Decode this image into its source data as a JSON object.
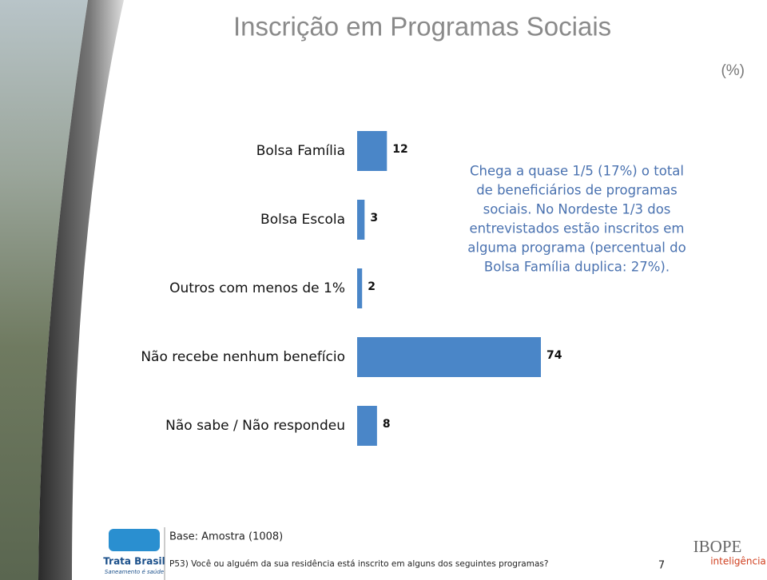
{
  "chart_data": {
    "type": "hbar",
    "title": "Inscrição em Programas Sociais",
    "unit_label": "(%)",
    "categories": [
      "Bolsa Família",
      "Bolsa Escola",
      "Outros com menos de 1%",
      "Não recebe nenhum benefício",
      "Não sabe / Não respondeu"
    ],
    "values": [
      12,
      3,
      2,
      74,
      8
    ],
    "color": "#4a86c8",
    "annotation": [
      "Chega a quase 1/5 (17%) o total",
      "de beneficiários de programas",
      "sociais. No Nordeste 1/3 dos",
      "entrevistados estão inscritos em",
      "alguma programa (percentual do",
      "Bolsa Família duplica: 27%)."
    ]
  },
  "footer": {
    "base": "Base: Amostra (1008)",
    "question": "P53) Você ou alguém da sua residência está inscrito em alguns dos seguintes programas?",
    "page_number": "7",
    "logo_left": "Trata Brasil",
    "logo_left_tagline": "Saneamento é saúde",
    "logo_right": "IBOPE",
    "logo_right_tagline": "inteligência"
  }
}
